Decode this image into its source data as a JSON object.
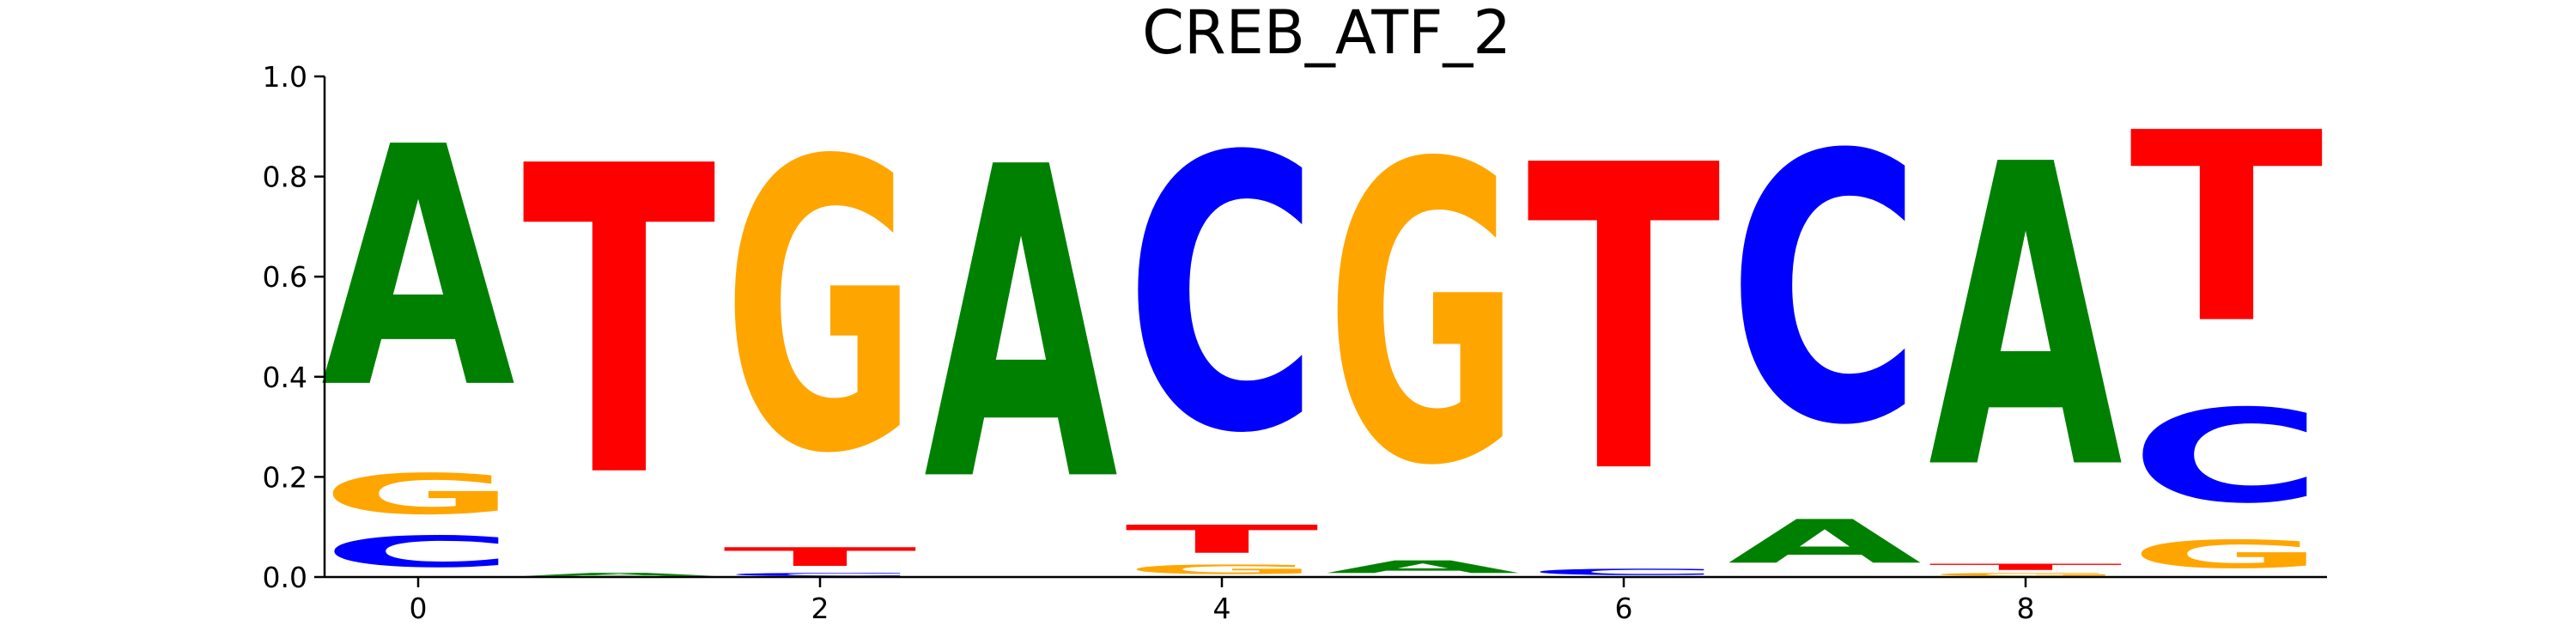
{
  "chart_data": {
    "type": "sequence-logo",
    "title": "CREB_ATF_2",
    "xlabel": "",
    "ylabel": "",
    "ylim": [
      0,
      1
    ],
    "yticks": [
      "0.0",
      "0.2",
      "0.4",
      "0.6",
      "0.8",
      "1.0"
    ],
    "xticks": [
      "0",
      "2",
      "4",
      "6",
      "8"
    ],
    "xtick_positions": [
      0,
      2,
      4,
      6,
      8
    ],
    "colors": {
      "A": "#008000",
      "C": "#0000ff",
      "G": "#ffa500",
      "T": "#ff0000"
    },
    "positions": [
      {
        "pos": 0,
        "stack": [
          {
            "letter": "T",
            "value": 0.0
          },
          {
            "letter": "C",
            "value": 0.1
          },
          {
            "letter": "G",
            "value": 0.13
          },
          {
            "letter": "A",
            "value": 0.77
          }
        ]
      },
      {
        "pos": 1,
        "stack": [
          {
            "letter": "A",
            "value": 0.01
          },
          {
            "letter": "T",
            "value": 0.99
          }
        ]
      },
      {
        "pos": 2,
        "stack": [
          {
            "letter": "C",
            "value": 0.01
          },
          {
            "letter": "T",
            "value": 0.06
          },
          {
            "letter": "G",
            "value": 0.93
          }
        ]
      },
      {
        "pos": 3,
        "stack": [
          {
            "letter": "A",
            "value": 1.0
          }
        ]
      },
      {
        "pos": 4,
        "stack": [
          {
            "letter": "G",
            "value": 0.03
          },
          {
            "letter": "T",
            "value": 0.09
          },
          {
            "letter": "C",
            "value": 0.88
          }
        ]
      },
      {
        "pos": 5,
        "stack": [
          {
            "letter": "A",
            "value": 0.04
          },
          {
            "letter": "G",
            "value": 0.96
          }
        ]
      },
      {
        "pos": 6,
        "stack": [
          {
            "letter": "C",
            "value": 0.02
          },
          {
            "letter": "T",
            "value": 0.98
          }
        ]
      },
      {
        "pos": 7,
        "stack": [
          {
            "letter": "A",
            "value": 0.14
          },
          {
            "letter": "C",
            "value": 0.86
          }
        ]
      },
      {
        "pos": 8,
        "stack": [
          {
            "letter": "G",
            "value": 0.01
          },
          {
            "letter": "T",
            "value": 0.02
          },
          {
            "letter": "A",
            "value": 0.97
          }
        ]
      },
      {
        "pos": 9,
        "stack": [
          {
            "letter": "G",
            "value": 0.09
          },
          {
            "letter": "C",
            "value": 0.3
          },
          {
            "letter": "T",
            "value": 0.61
          }
        ]
      }
    ]
  }
}
